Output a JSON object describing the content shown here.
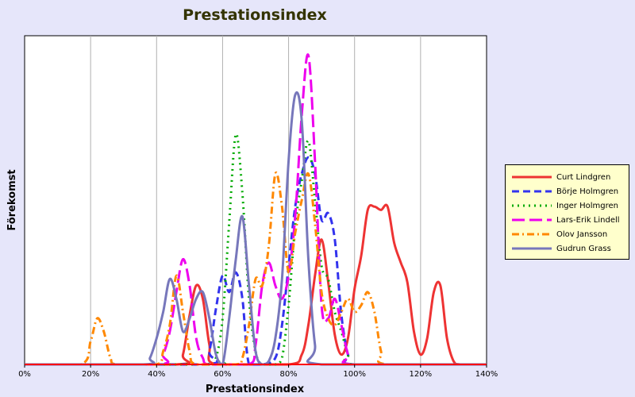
{
  "chart_data": {
    "type": "line",
    "title": "Prestationsindex",
    "xlabel": "Prestationsindex",
    "ylabel": "Förekomst",
    "xlim": [
      0,
      140
    ],
    "ylim": [
      0,
      100
    ],
    "xticks": [
      0,
      20,
      40,
      60,
      80,
      100,
      120,
      140
    ],
    "xtick_labels": [
      "0%",
      "20%",
      "40%",
      "60%",
      "80%",
      "100%",
      "120%",
      "140%"
    ],
    "grid": "vertical",
    "legend_position": "right",
    "series": [
      {
        "name": "Curt Lindgren",
        "color": "#ee3333",
        "dash": "solid",
        "x": [
          46,
          48,
          50,
          52,
          54,
          56,
          58,
          80,
          84,
          86,
          88,
          90,
          92,
          94,
          96,
          98,
          100,
          102,
          104,
          106,
          108,
          110,
          112,
          114,
          116,
          118,
          120,
          122,
          124,
          126,
          128,
          130,
          132
        ],
        "y": [
          0,
          3,
          15,
          24,
          20,
          6,
          0,
          0,
          3,
          12,
          27,
          38,
          25,
          9,
          3,
          8,
          23,
          33,
          47,
          48,
          47,
          48,
          37,
          31,
          25,
          10,
          3,
          8,
          22,
          24,
          8,
          1,
          0
        ]
      },
      {
        "name": "Börje Holmgren",
        "color": "#3333ee",
        "dash": "dashed",
        "x": [
          54,
          56,
          58,
          60,
          62,
          64,
          66,
          68,
          72,
          76,
          78,
          80,
          82,
          84,
          86,
          88,
          90,
          92,
          94,
          96,
          98,
          100
        ],
        "y": [
          0,
          4,
          17,
          27,
          22,
          28,
          20,
          0,
          0,
          2,
          12,
          30,
          48,
          58,
          63,
          58,
          44,
          46,
          38,
          15,
          3,
          0
        ]
      },
      {
        "name": "Inger Holmgren",
        "color": "#00aa00",
        "dash": "dotted",
        "x": [
          56,
          58,
          60,
          62,
          64,
          66,
          68,
          70,
          72,
          76,
          78,
          80,
          82,
          84,
          86,
          88,
          90,
          92,
          94,
          96,
          98,
          100
        ],
        "y": [
          0,
          2,
          14,
          43,
          70,
          52,
          20,
          4,
          0,
          0,
          2,
          18,
          42,
          56,
          68,
          50,
          30,
          26,
          16,
          10,
          3,
          0
        ]
      },
      {
        "name": "Lars-Erik Lindell",
        "color": "#ee00ee",
        "dash": "longdash",
        "x": [
          40,
          42,
          44,
          46,
          48,
          50,
          52,
          54,
          56,
          68,
          70,
          72,
          74,
          76,
          78,
          80,
          82,
          84,
          86,
          88,
          90,
          92,
          94,
          96,
          98,
          100
        ],
        "y": [
          0,
          3,
          10,
          22,
          32,
          24,
          8,
          2,
          0,
          0,
          6,
          24,
          31,
          24,
          20,
          27,
          45,
          76,
          94,
          62,
          18,
          14,
          20,
          12,
          3,
          0
        ]
      },
      {
        "name": "Olov Jansson",
        "color": "#ff8800",
        "dash": "dashdot",
        "x": [
          17,
          20,
          22,
          24,
          26,
          28,
          40,
          42,
          44,
          46,
          48,
          50,
          52,
          64,
          66,
          68,
          70,
          72,
          74,
          76,
          78,
          80,
          82,
          84,
          86,
          88,
          90,
          92,
          94,
          96,
          98,
          100,
          102,
          104,
          106,
          108,
          110
        ],
        "y": [
          0,
          7,
          14,
          10,
          2,
          0,
          0,
          4,
          12,
          27,
          16,
          4,
          0,
          0,
          2,
          12,
          26,
          24,
          36,
          58,
          48,
          28,
          40,
          50,
          58,
          43,
          22,
          14,
          12,
          16,
          20,
          16,
          18,
          22,
          16,
          4,
          0
        ]
      },
      {
        "name": "Gudrun Grass",
        "color": "#7777bb",
        "dash": "solid",
        "x": [
          36,
          38,
          40,
          42,
          44,
          46,
          48,
          50,
          52,
          54,
          56,
          58,
          60,
          62,
          64,
          66,
          68,
          70,
          72,
          74,
          76,
          78,
          80,
          82,
          84,
          86,
          88,
          90
        ],
        "y": [
          0,
          2,
          8,
          16,
          26,
          20,
          10,
          14,
          20,
          22,
          14,
          3,
          0,
          14,
          32,
          45,
          24,
          4,
          0,
          1,
          8,
          26,
          62,
          82,
          74,
          32,
          6,
          0
        ]
      }
    ]
  }
}
